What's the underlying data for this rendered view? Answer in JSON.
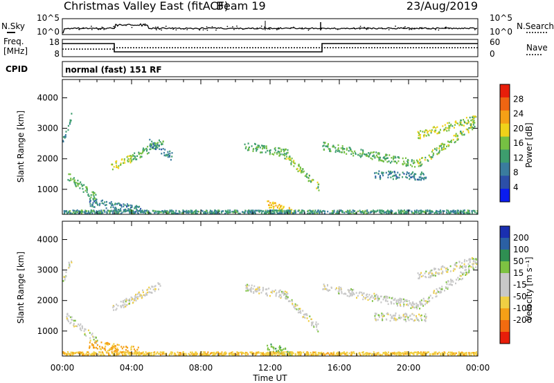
{
  "header": {
    "title": "Christmas Valley East (fitACF)",
    "beam": "Beam 19",
    "date": "23/Aug/2019"
  },
  "noise_panel": {
    "left_label": "N.Sky",
    "right_label": "N.Search",
    "left_ticks": [
      "10^5",
      "10^0"
    ],
    "right_ticks": [
      "10^5",
      "10^0"
    ]
  },
  "freq_panel": {
    "left_label_1": "Freq.",
    "left_label_2": "[MHz]",
    "right_label": "Nave",
    "left_ticks": [
      "18",
      "8"
    ],
    "right_ticks": [
      "60",
      "0"
    ]
  },
  "cpid_panel": {
    "label": "CPID",
    "text": "normal (fast) 151 RF"
  },
  "colors": {
    "power_scale": [
      "#0a1cf0",
      "#2c4fa8",
      "#3a7c9e",
      "#3d9d6e",
      "#76c043",
      "#f0d21a",
      "#f5a016",
      "#ef6512",
      "#e81e0a"
    ],
    "velocity_scale": [
      "#e81e0a",
      "#f26b10",
      "#f5a016",
      "#f0cf43",
      "#c8c8c8",
      "#c8c8c8",
      "#7dc242",
      "#2f8f52",
      "#2b60a4",
      "#1a2fb0"
    ]
  },
  "chart_data": [
    {
      "type": "heatmap",
      "parameter": "Power",
      "ylabel": "Slant Range [km]",
      "colorbar_label": "Power [dB]",
      "colorbar_ticks": [
        4,
        8,
        12,
        16,
        20,
        24,
        28
      ],
      "ylim": [
        180,
        4600
      ],
      "yticks": [
        1000,
        2000,
        3000,
        4000
      ],
      "xlim": [
        0,
        24
      ],
      "xticks": [
        "00:00",
        "04:00",
        "08:00",
        "12:00",
        "16:00",
        "20:00",
        "00:00"
      ],
      "features": [
        {
          "start": 0.0,
          "end": 0.5,
          "r0": 2600,
          "r1": 3400,
          "level": 10
        },
        {
          "start": 0.2,
          "end": 2.0,
          "r0": 1500,
          "r1": 700,
          "level": 14
        },
        {
          "start": 1.5,
          "end": 4.5,
          "r0": 600,
          "r1": 350,
          "level": 9
        },
        {
          "start": 2.8,
          "end": 4.0,
          "r0": 1750,
          "r1": 2050,
          "level": 18
        },
        {
          "start": 4.0,
          "end": 5.8,
          "r0": 2050,
          "r1": 2600,
          "level": 14
        },
        {
          "start": 5.0,
          "end": 6.3,
          "r0": 2550,
          "r1": 2100,
          "level": 9
        },
        {
          "start": 10.5,
          "end": 13.0,
          "r0": 2450,
          "r1": 2200,
          "level": 14
        },
        {
          "start": 12.8,
          "end": 14.8,
          "r0": 2150,
          "r1": 1100,
          "level": 16
        },
        {
          "start": 11.8,
          "end": 13.3,
          "r0": 550,
          "r1": 250,
          "level": 22
        },
        {
          "start": 15.0,
          "end": 20.5,
          "r0": 2450,
          "r1": 1850,
          "level": 14
        },
        {
          "start": 20.5,
          "end": 23.9,
          "r0": 1850,
          "r1": 3200,
          "level": 16
        },
        {
          "start": 18.0,
          "end": 21.0,
          "r0": 1500,
          "r1": 1450,
          "level": 9
        },
        {
          "start": 20.5,
          "end": 23.9,
          "r0": 2800,
          "r1": 3350,
          "level": 17
        },
        {
          "start": 0.0,
          "end": 24.0,
          "r0": 250,
          "r1": 250,
          "level": 11
        }
      ]
    },
    {
      "type": "heatmap",
      "parameter": "Velocity",
      "ylabel": "Slant Range [km]",
      "xlabel": "Time UT",
      "colorbar_label": "Velocity [m s⁻¹]",
      "colorbar_ticks": [
        200,
        100,
        50,
        15,
        -15,
        -50,
        -100,
        -200
      ],
      "ylim": [
        180,
        4600
      ],
      "yticks": [
        1000,
        2000,
        3000,
        4000
      ],
      "xlim": [
        0,
        24
      ],
      "xticks": [
        "00:00",
        "04:00",
        "08:00",
        "12:00",
        "16:00",
        "20:00",
        "00:00"
      ],
      "features": [
        {
          "start": 0.0,
          "end": 0.5,
          "r0": 2600,
          "r1": 3400,
          "vel": 0
        },
        {
          "start": 0.2,
          "end": 2.0,
          "r0": 1500,
          "r1": 700,
          "vel": 0
        },
        {
          "start": 1.5,
          "end": 4.5,
          "r0": 600,
          "r1": 350,
          "vel": -60
        },
        {
          "start": 2.8,
          "end": 4.0,
          "r0": 1750,
          "r1": 2050,
          "vel": 0
        },
        {
          "start": 4.0,
          "end": 5.8,
          "r0": 2050,
          "r1": 2600,
          "vel": -5
        },
        {
          "start": 10.5,
          "end": 13.0,
          "r0": 2450,
          "r1": 2200,
          "vel": 0
        },
        {
          "start": 12.8,
          "end": 14.8,
          "r0": 2150,
          "r1": 1100,
          "vel": 0
        },
        {
          "start": 11.8,
          "end": 13.3,
          "r0": 550,
          "r1": 250,
          "vel": 40
        },
        {
          "start": 15.0,
          "end": 20.5,
          "r0": 2450,
          "r1": 1850,
          "vel": 0
        },
        {
          "start": 20.5,
          "end": 23.9,
          "r0": 1850,
          "r1": 3200,
          "vel": 0
        },
        {
          "start": 18.0,
          "end": 21.0,
          "r0": 1500,
          "r1": 1450,
          "vel": 0
        },
        {
          "start": 20.5,
          "end": 23.9,
          "r0": 2800,
          "r1": 3350,
          "vel": 0
        },
        {
          "start": 0.0,
          "end": 24.0,
          "r0": 250,
          "r1": 250,
          "vel": -40
        }
      ]
    }
  ]
}
